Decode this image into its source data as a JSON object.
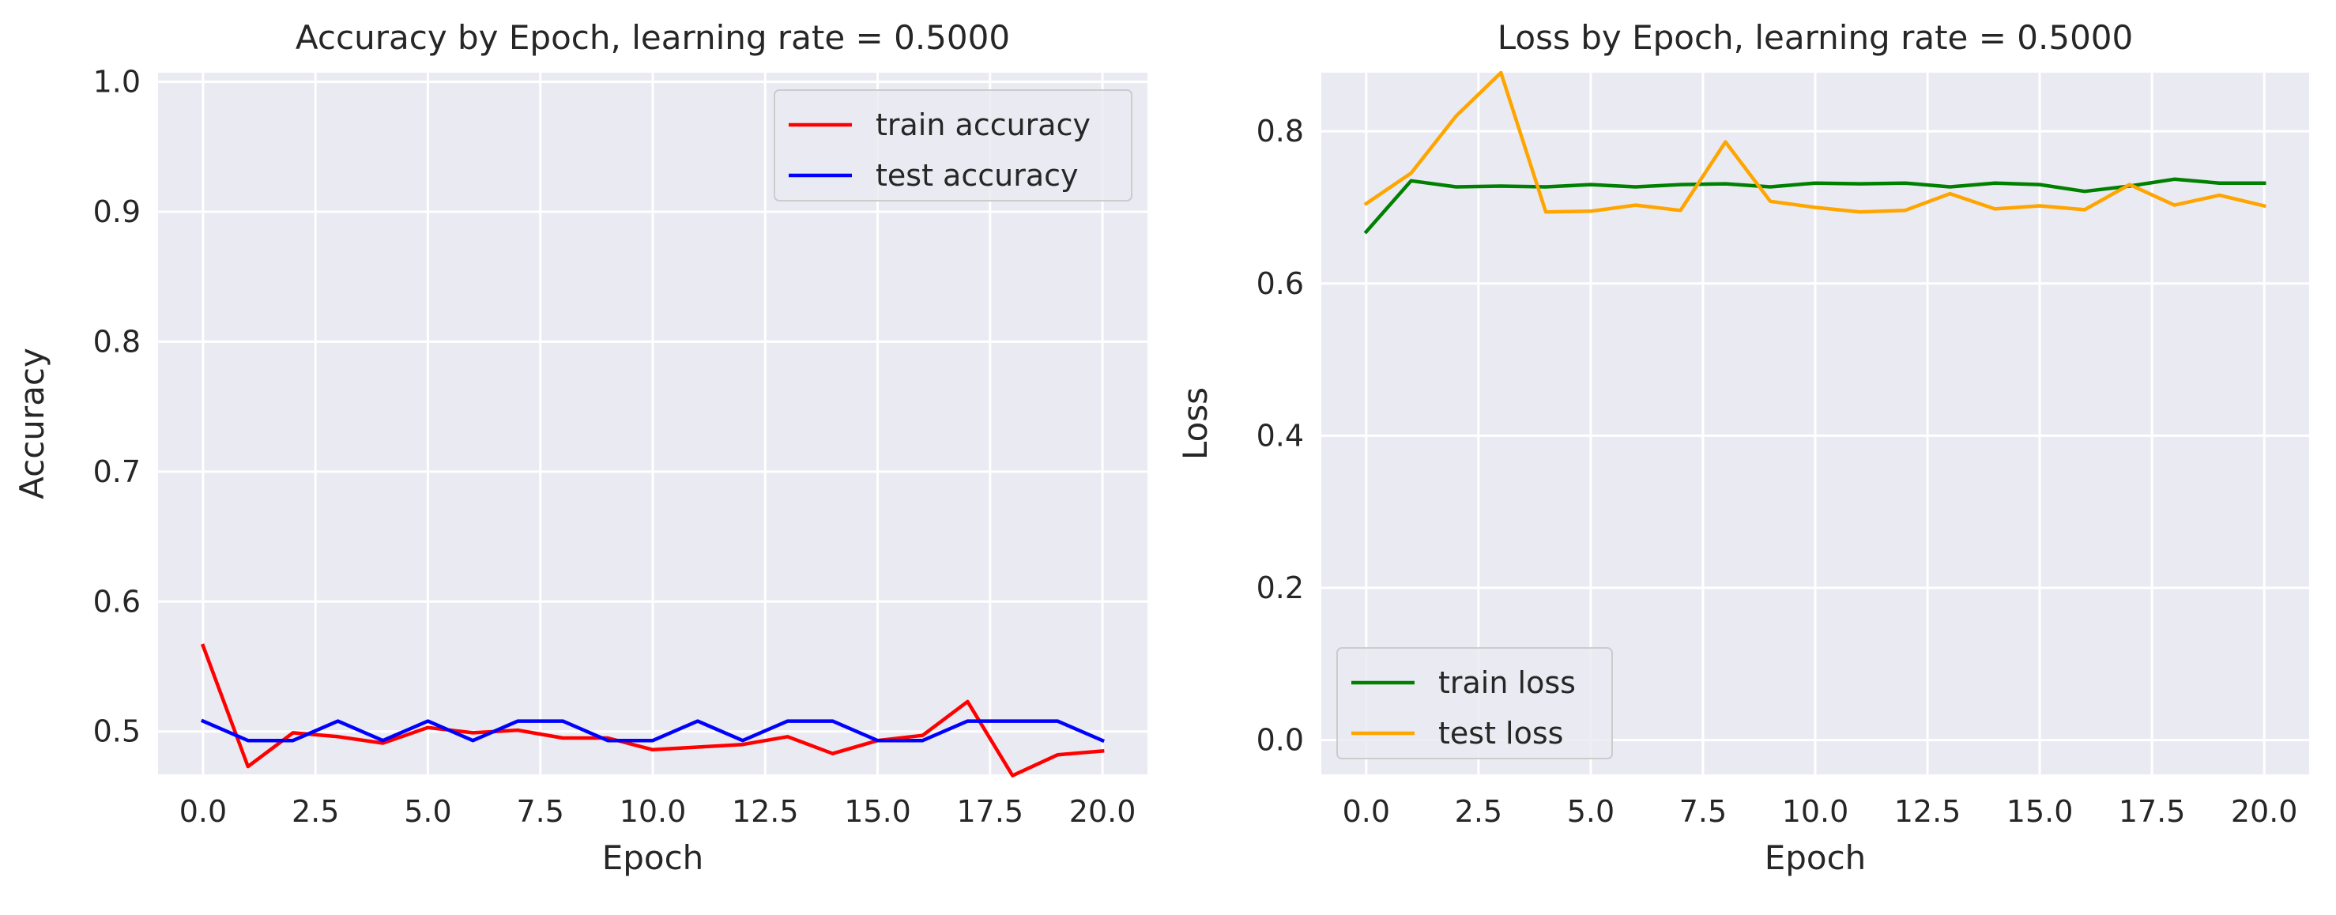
{
  "chart_data": [
    {
      "type": "line",
      "title": "Accuracy by Epoch, learning rate = 0.5000",
      "xlabel": "Epoch",
      "ylabel": "Accuracy",
      "xlim": [
        -1,
        21
      ],
      "ylim": [
        0.467,
        1.007
      ],
      "xticks": [
        "0.0",
        "2.5",
        "5.0",
        "7.5",
        "10.0",
        "12.5",
        "15.0",
        "17.5",
        "20.0"
      ],
      "yticks": [
        "0.5",
        "0.6",
        "0.7",
        "0.8",
        "0.9",
        "1.0"
      ],
      "grid": true,
      "legend_position": "top-right",
      "x": [
        0,
        1,
        2,
        3,
        4,
        5,
        6,
        7,
        8,
        9,
        10,
        11,
        12,
        13,
        14,
        15,
        16,
        17,
        18,
        19,
        20
      ],
      "series": [
        {
          "name": "train accuracy",
          "color": "#ff0000",
          "values": [
            0.566,
            0.473,
            0.499,
            0.496,
            0.491,
            0.503,
            0.499,
            0.501,
            0.495,
            0.495,
            0.486,
            0.488,
            0.49,
            0.496,
            0.483,
            0.493,
            0.497,
            0.523,
            0.466,
            0.482,
            0.485
          ]
        },
        {
          "name": "test accuracy",
          "color": "#0000ff",
          "values": [
            0.508,
            0.493,
            0.493,
            0.508,
            0.493,
            0.508,
            0.493,
            0.508,
            0.508,
            0.493,
            0.493,
            0.508,
            0.493,
            0.508,
            0.508,
            0.493,
            0.493,
            0.508,
            0.508,
            0.508,
            0.493
          ]
        }
      ]
    },
    {
      "type": "line",
      "title": "Loss by Epoch, learning rate = 0.5000",
      "xlabel": "Epoch",
      "ylabel": "Loss",
      "xlim": [
        -1,
        21
      ],
      "ylim": [
        -0.045,
        0.877
      ],
      "xticks": [
        "0.0",
        "2.5",
        "5.0",
        "7.5",
        "10.0",
        "12.5",
        "15.0",
        "17.5",
        "20.0"
      ],
      "yticks": [
        "0.0",
        "0.2",
        "0.4",
        "0.6",
        "0.8"
      ],
      "grid": true,
      "legend_position": "bottom-left",
      "x": [
        0,
        1,
        2,
        3,
        4,
        5,
        6,
        7,
        8,
        9,
        10,
        11,
        12,
        13,
        14,
        15,
        16,
        17,
        18,
        19,
        20
      ],
      "series": [
        {
          "name": "train loss",
          "color": "#008000",
          "values": [
            0.668,
            0.735,
            0.727,
            0.728,
            0.727,
            0.73,
            0.727,
            0.73,
            0.731,
            0.727,
            0.732,
            0.731,
            0.732,
            0.727,
            0.732,
            0.73,
            0.721,
            0.728,
            0.737,
            0.732,
            0.732
          ]
        },
        {
          "name": "test loss",
          "color": "#ffa500",
          "values": [
            0.705,
            0.745,
            0.82,
            0.877,
            0.694,
            0.695,
            0.703,
            0.696,
            0.786,
            0.708,
            0.7,
            0.694,
            0.696,
            0.718,
            0.698,
            0.702,
            0.697,
            0.73,
            0.703,
            0.716,
            0.702
          ]
        }
      ]
    }
  ]
}
